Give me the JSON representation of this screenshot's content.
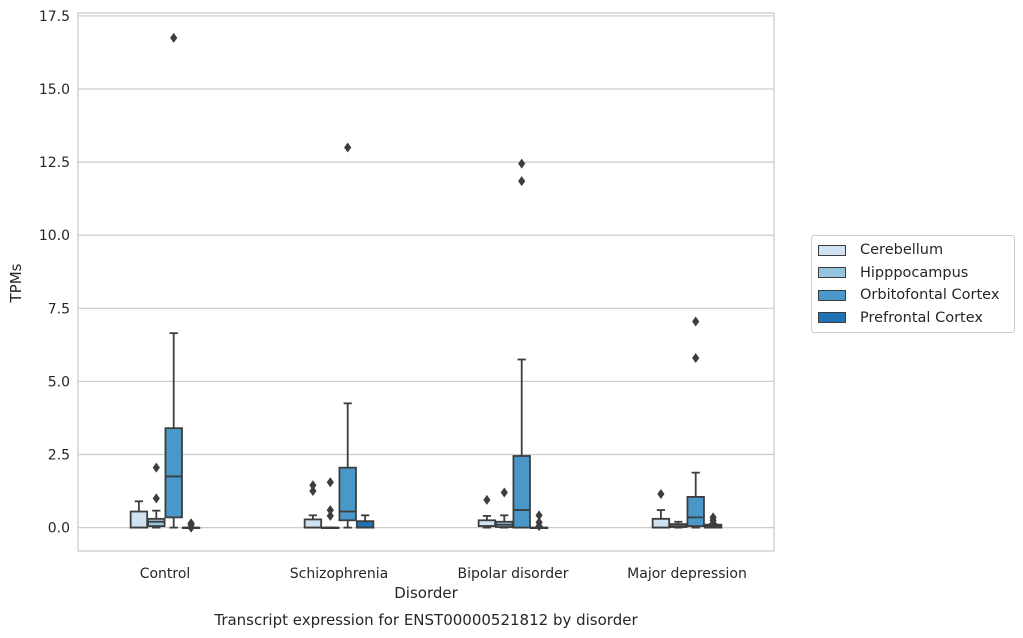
{
  "chart_data": {
    "type": "box",
    "title": "Transcript expression for ENST00000521812 by disorder",
    "xlabel": "Disorder",
    "ylabel": "TPMs",
    "ylim": [
      -0.8,
      17.6
    ],
    "yticks": [
      "0.0",
      "2.5",
      "5.0",
      "7.5",
      "10.0",
      "12.5",
      "15.0",
      "17.5"
    ],
    "categories": [
      "Control",
      "Schizophrenia",
      "Bipolar disorder",
      "Major depression"
    ],
    "grid": "horizontal",
    "legend_position": "right",
    "series": [
      {
        "name": "Cerebellum",
        "color": "#d0e1f2",
        "boxes": [
          {
            "q1": 0,
            "median": 0,
            "q3": 0.55,
            "whislo": 0,
            "whishi": 0.9,
            "fliers": []
          },
          {
            "q1": 0,
            "median": 0,
            "q3": 0.28,
            "whislo": 0,
            "whishi": 0.42,
            "fliers": [
              1.25,
              1.45
            ]
          },
          {
            "q1": 0.05,
            "median": 0.05,
            "q3": 0.25,
            "whislo": 0,
            "whishi": 0.4,
            "fliers": [
              0.95
            ]
          },
          {
            "q1": 0,
            "median": 0,
            "q3": 0.3,
            "whislo": 0,
            "whishi": 0.6,
            "fliers": [
              1.15
            ]
          }
        ]
      },
      {
        "name": "Hipppocampus",
        "color": "#94c4df",
        "boxes": [
          {
            "q1": 0.05,
            "median": 0.2,
            "q3": 0.3,
            "whislo": 0,
            "whishi": 0.58,
            "fliers": [
              1.0,
              2.05
            ]
          },
          {
            "q1": 0,
            "median": 0,
            "q3": 0,
            "whislo": 0,
            "whishi": 0,
            "fliers": [
              0.4,
              0.6,
              1.55
            ]
          },
          {
            "q1": 0.02,
            "median": 0.1,
            "q3": 0.2,
            "whislo": 0,
            "whishi": 0.42,
            "fliers": [
              1.2
            ]
          },
          {
            "q1": 0.02,
            "median": 0.05,
            "q3": 0.12,
            "whislo": 0,
            "whishi": 0.2,
            "fliers": []
          }
        ]
      },
      {
        "name": "Orbitofontal Cortex",
        "color": "#4a98c9",
        "boxes": [
          {
            "q1": 0.35,
            "median": 1.75,
            "q3": 3.4,
            "whislo": 0,
            "whishi": 6.65,
            "fliers": [
              16.75
            ]
          },
          {
            "q1": 0.25,
            "median": 0.55,
            "q3": 2.05,
            "whislo": 0,
            "whishi": 4.25,
            "fliers": [
              13.0
            ]
          },
          {
            "q1": 0,
            "median": 0.6,
            "q3": 2.45,
            "whislo": 0,
            "whishi": 5.75,
            "fliers": [
              11.85,
              12.45
            ]
          },
          {
            "q1": 0.05,
            "median": 0.35,
            "q3": 1.05,
            "whislo": 0,
            "whishi": 1.88,
            "fliers": [
              5.8,
              7.05
            ]
          }
        ]
      },
      {
        "name": "Prefrontal Cortex",
        "color": "#2171b5",
        "boxes": [
          {
            "q1": 0,
            "median": 0,
            "q3": 0,
            "whislo": 0,
            "whishi": 0,
            "fliers": [
              0.0,
              0.1,
              0.15
            ]
          },
          {
            "q1": 0,
            "median": 0,
            "q3": 0.22,
            "whislo": 0,
            "whishi": 0.42,
            "fliers": []
          },
          {
            "q1": 0,
            "median": 0,
            "q3": 0,
            "whislo": 0,
            "whishi": 0,
            "fliers": [
              0.05,
              0.18,
              0.42
            ]
          },
          {
            "q1": 0,
            "median": 0.05,
            "q3": 0.1,
            "whislo": 0,
            "whishi": 0.12,
            "fliers": [
              0.15,
              0.25,
              0.35
            ]
          }
        ]
      }
    ]
  }
}
